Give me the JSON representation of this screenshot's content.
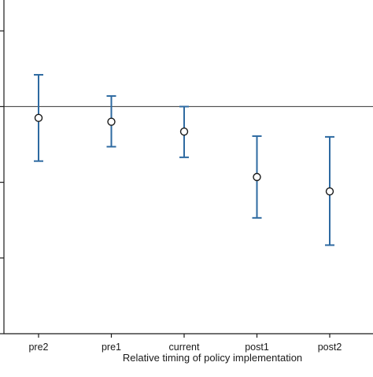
{
  "chart_data": {
    "type": "scatter",
    "title": "",
    "xlabel": "Relative timing of policy implementation",
    "ylabel": "",
    "categories": [
      "pre2",
      "pre1",
      "current",
      "post1",
      "post2"
    ],
    "estimates": [
      -0.015,
      -0.02,
      -0.033,
      -0.093,
      -0.112
    ],
    "ci_lower": [
      -0.072,
      -0.053,
      -0.067,
      -0.147,
      -0.183
    ],
    "ci_upper": [
      0.042,
      0.014,
      0.0,
      -0.039,
      -0.04
    ],
    "reference_line": 0,
    "ylim": [
      -0.3,
      0.12
    ],
    "grid": false,
    "marker": "hollow-circle",
    "colors": {
      "error_bar": "#2e6aa1",
      "marker": "#1a1a1a",
      "reference_line": "#333333",
      "axis": "#1a1a1a"
    }
  }
}
